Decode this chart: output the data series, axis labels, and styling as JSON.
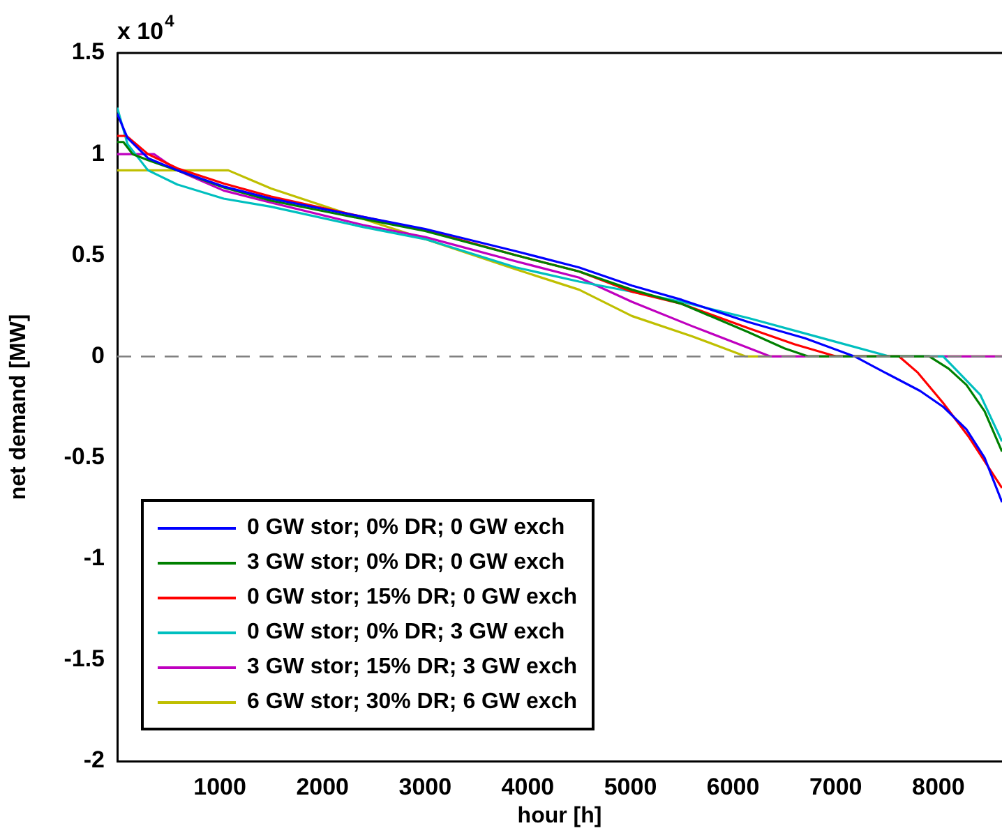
{
  "chart_data": {
    "type": "line",
    "xlabel": "hour [h]",
    "ylabel": "net demand [MW]",
    "annotations": [
      "x 10$^{4}$"
    ],
    "xlim": [
      0,
      8620
    ],
    "xticks": [
      1000,
      2000,
      3000,
      4000,
      5000,
      6000,
      7000,
      8000
    ],
    "ylim": [
      -2,
      1.5
    ],
    "yticks": [
      -2,
      -1.5,
      -1,
      -0.5,
      0,
      0.5,
      1,
      1.5
    ],
    "grid": false,
    "legend": "bottom left",
    "ref_lines": [
      {
        "axis": "y",
        "value": 0,
        "color": "#808080",
        "line_style": "dashed"
      }
    ],
    "series": [
      {
        "name": "0 GW stor; 0% DR; 0 GW exch",
        "color": "#0000ff",
        "x": [
          0,
          100,
          300,
          585,
          1037,
          1500,
          2393,
          3000,
          3886,
          4500,
          5014,
          5500,
          6148,
          6700,
          7185,
          7369,
          7821,
          8050,
          8273,
          8450,
          8620
        ],
        "values": [
          1.2,
          1.08,
          0.98,
          0.92,
          0.84,
          0.78,
          0.69,
          0.63,
          0.52,
          0.44,
          0.35,
          0.28,
          0.17,
          0.09,
          0,
          -0.05,
          -0.17,
          -0.25,
          -0.36,
          -0.5,
          -0.72
        ]
      },
      {
        "name": "3 GW stor; 0% DR; 0 GW exch",
        "color": "#008000",
        "x": [
          0,
          60,
          150,
          300,
          585,
          1037,
          1500,
          2393,
          3000,
          3886,
          4500,
          5014,
          5500,
          6148,
          6500,
          6735,
          7912,
          8100,
          8273,
          8450,
          8620
        ],
        "values": [
          1.06,
          1.06,
          1.0,
          0.97,
          0.92,
          0.835,
          0.77,
          0.68,
          0.62,
          0.5,
          0.42,
          0.33,
          0.26,
          0.12,
          0.04,
          0,
          0,
          -0.06,
          -0.14,
          -0.27,
          -0.47
        ]
      },
      {
        "name": "0 GW stor; 15% DR; 0 GW exch",
        "color": "#ff0000",
        "x": [
          0,
          90,
          300,
          585,
          1037,
          1500,
          2393,
          3000,
          3886,
          4500,
          5014,
          5500,
          6148,
          6600,
          7007,
          7618,
          7800,
          8047,
          8300,
          8620
        ],
        "values": [
          1.09,
          1.09,
          1.0,
          0.93,
          0.855,
          0.79,
          0.69,
          0.625,
          0.5,
          0.42,
          0.32,
          0.26,
          0.14,
          0.06,
          0,
          0,
          -0.08,
          -0.23,
          -0.4,
          -0.65
        ]
      },
      {
        "name": "0 GW stor; 0% DR; 3 GW exch",
        "color": "#00bfbf",
        "x": [
          0,
          100,
          300,
          585,
          1037,
          1500,
          2393,
          3000,
          3886,
          4500,
          5014,
          5500,
          6148,
          6800,
          7525,
          8047,
          8200,
          8409,
          8620
        ],
        "values": [
          1.23,
          1.05,
          0.92,
          0.85,
          0.78,
          0.74,
          0.64,
          0.58,
          0.44,
          0.37,
          0.32,
          0.27,
          0.19,
          0.1,
          0,
          0,
          -0.08,
          -0.19,
          -0.42
        ]
      },
      {
        "name": "3 GW stor; 15% DR; 3 GW exch",
        "color": "#bf00bf",
        "x": [
          0,
          358,
          585,
          1037,
          1500,
          2393,
          3000,
          3886,
          4500,
          5014,
          5600,
          6365,
          8620
        ],
        "values": [
          1.0,
          1.0,
          0.92,
          0.82,
          0.76,
          0.65,
          0.59,
          0.47,
          0.39,
          0.27,
          0.15,
          0,
          0
        ]
      },
      {
        "name": "6 GW stor; 30% DR; 6 GW exch",
        "color": "#bfbf00",
        "x": [
          0,
          1082,
          1500,
          2393,
          3000,
          3886,
          4500,
          5014,
          5600,
          6125,
          8620
        ],
        "values": [
          0.92,
          0.92,
          0.83,
          0.68,
          0.58,
          0.43,
          0.33,
          0.2,
          0.1,
          0,
          0
        ]
      }
    ]
  }
}
